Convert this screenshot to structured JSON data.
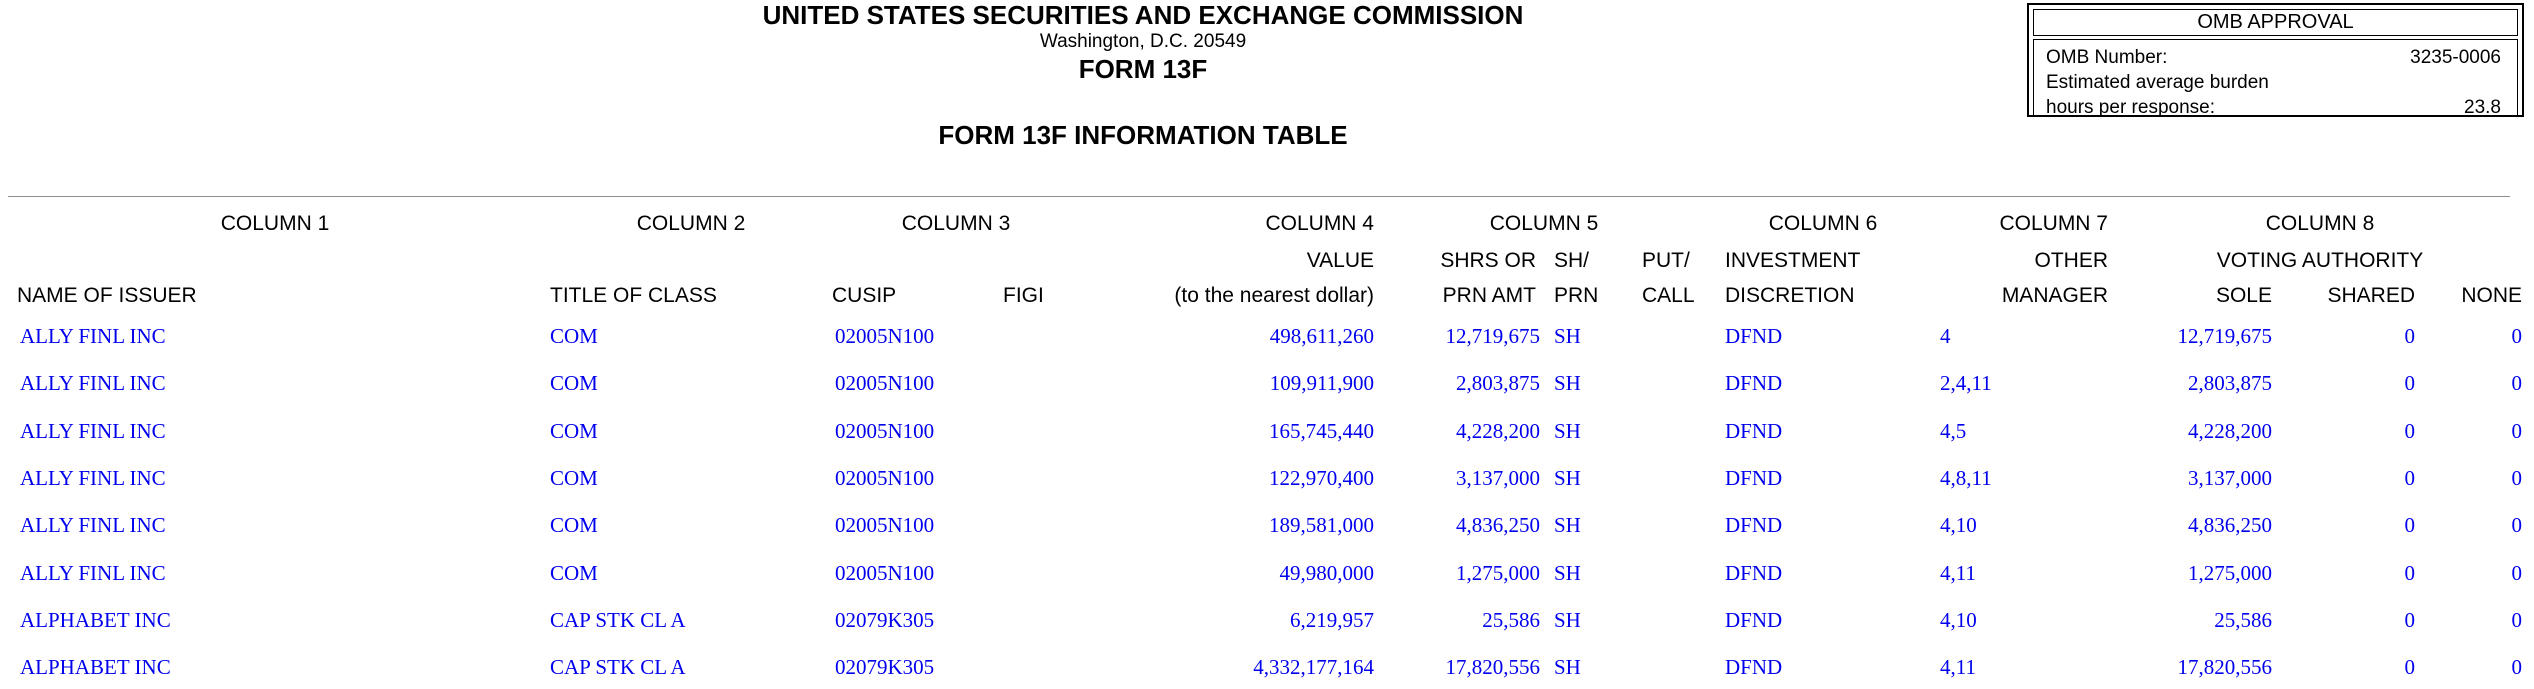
{
  "header": {
    "agency": "UNITED STATES SECURITIES AND EXCHANGE COMMISSION",
    "city": "Washington, D.C. 20549",
    "form_name": "FORM 13F",
    "table_title": "FORM 13F INFORMATION TABLE"
  },
  "omb": {
    "title": "OMB APPROVAL",
    "number_label": "OMB Number:",
    "number_value": "3235-0006",
    "burden_line1": "Estimated average burden",
    "burden_line2": "hours per response:",
    "burden_value": "23.8"
  },
  "table": {
    "column_groups": [
      "COLUMN 1",
      "COLUMN 2",
      "COLUMN 3",
      "COLUMN 4",
      "COLUMN 5",
      "COLUMN 6",
      "COLUMN 7",
      "COLUMN 8"
    ],
    "sub1": {
      "value": "VALUE",
      "shrs": "SHRS OR",
      "sh_prn": "SH/",
      "put_call": "PUT/",
      "discretion": "INVESTMENT",
      "other": "OTHER",
      "voting": "VOTING AUTHORITY"
    },
    "sub2": {
      "issuer": "NAME OF ISSUER",
      "class": "TITLE OF CLASS",
      "cusip": "CUSIP",
      "figi": "FIGI",
      "value": "(to the nearest dollar)",
      "shrs": "PRN AMT",
      "sh_prn": "PRN",
      "put_call": "CALL",
      "discretion": "DISCRETION",
      "other": "MANAGER",
      "sole": "SOLE",
      "shared": "SHARED",
      "none": "NONE"
    },
    "rows": [
      {
        "issuer": "ALLY FINL INC",
        "class": "COM",
        "cusip": "02005N100",
        "figi": "",
        "value": "498,611,260",
        "shrs_or_prn_amt": "12,719,675",
        "sh_prn": "SH",
        "put_call": "",
        "discretion": "DFND",
        "other_manager": "4",
        "sole": "12,719,675",
        "shared": "0",
        "none": "0"
      },
      {
        "issuer": "ALLY FINL INC",
        "class": "COM",
        "cusip": "02005N100",
        "figi": "",
        "value": "109,911,900",
        "shrs_or_prn_amt": "2,803,875",
        "sh_prn": "SH",
        "put_call": "",
        "discretion": "DFND",
        "other_manager": "2,4,11",
        "sole": "2,803,875",
        "shared": "0",
        "none": "0"
      },
      {
        "issuer": "ALLY FINL INC",
        "class": "COM",
        "cusip": "02005N100",
        "figi": "",
        "value": "165,745,440",
        "shrs_or_prn_amt": "4,228,200",
        "sh_prn": "SH",
        "put_call": "",
        "discretion": "DFND",
        "other_manager": "4,5",
        "sole": "4,228,200",
        "shared": "0",
        "none": "0"
      },
      {
        "issuer": "ALLY FINL INC",
        "class": "COM",
        "cusip": "02005N100",
        "figi": "",
        "value": "122,970,400",
        "shrs_or_prn_amt": "3,137,000",
        "sh_prn": "SH",
        "put_call": "",
        "discretion": "DFND",
        "other_manager": "4,8,11",
        "sole": "3,137,000",
        "shared": "0",
        "none": "0"
      },
      {
        "issuer": "ALLY FINL INC",
        "class": "COM",
        "cusip": "02005N100",
        "figi": "",
        "value": "189,581,000",
        "shrs_or_prn_amt": "4,836,250",
        "sh_prn": "SH",
        "put_call": "",
        "discretion": "DFND",
        "other_manager": "4,10",
        "sole": "4,836,250",
        "shared": "0",
        "none": "0"
      },
      {
        "issuer": "ALLY FINL INC",
        "class": "COM",
        "cusip": "02005N100",
        "figi": "",
        "value": "49,980,000",
        "shrs_or_prn_amt": "1,275,000",
        "sh_prn": "SH",
        "put_call": "",
        "discretion": "DFND",
        "other_manager": "4,11",
        "sole": "1,275,000",
        "shared": "0",
        "none": "0"
      },
      {
        "issuer": "ALPHABET INC",
        "class": "CAP STK CL A",
        "cusip": "02079K305",
        "figi": "",
        "value": "6,219,957",
        "shrs_or_prn_amt": "25,586",
        "sh_prn": "SH",
        "put_call": "",
        "discretion": "DFND",
        "other_manager": "4,10",
        "sole": "25,586",
        "shared": "0",
        "none": "0"
      },
      {
        "issuer": "ALPHABET INC",
        "class": "CAP STK CL A",
        "cusip": "02079K305",
        "figi": "",
        "value": "4,332,177,164",
        "shrs_or_prn_amt": "17,820,556",
        "sh_prn": "SH",
        "put_call": "",
        "discretion": "DFND",
        "other_manager": "4,11",
        "sole": "17,820,556",
        "shared": "0",
        "none": "0"
      }
    ]
  },
  "colors": {
    "data_blue": "#0000EE",
    "rule_gray": "#8c8c8c"
  }
}
